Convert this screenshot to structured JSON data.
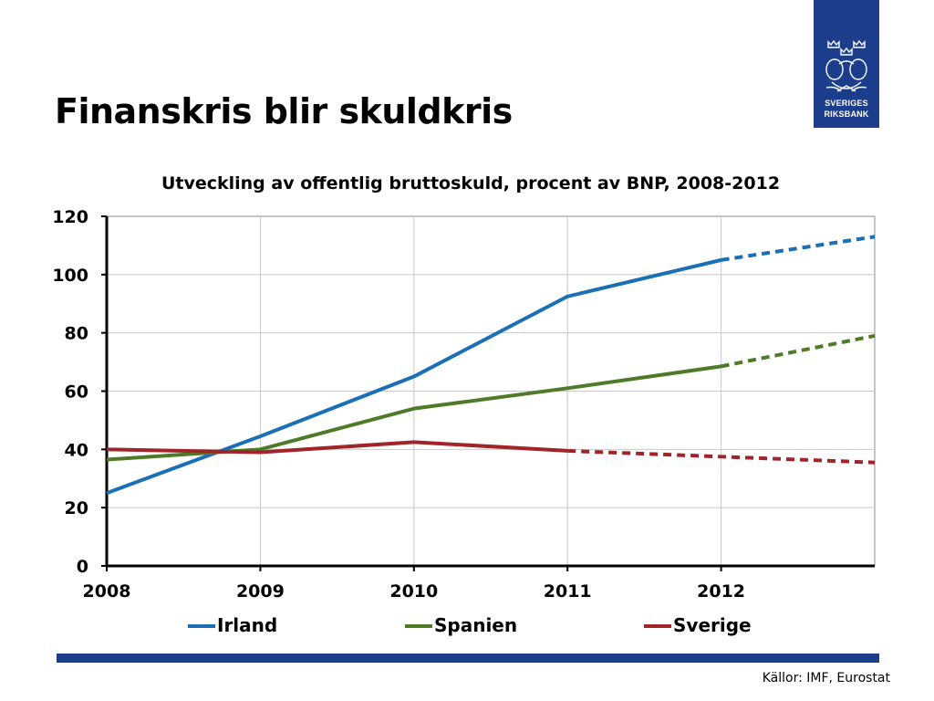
{
  "slide": {
    "title": "Finanskris blir skuldkris",
    "source": "Källor: IMF, Eurostat"
  },
  "logo": {
    "line1": "SVERIGES",
    "line2": "RIKSBANK",
    "icon": "riksbank-crest-icon",
    "color": "#1c3d8c"
  },
  "colors": {
    "footer_bar": "#1c3d8c"
  },
  "chart_data": {
    "type": "line",
    "title": "Utveckling av offentlig bruttoskuld, procent av BNP, 2008-2012",
    "xlabel": "",
    "ylabel": "",
    "x_ticks": [
      "2008",
      "2009",
      "2010",
      "2011",
      "2012"
    ],
    "x_range": [
      2008,
      2013
    ],
    "ylim": [
      0,
      120
    ],
    "y_ticks": [
      "0",
      "20",
      "40",
      "60",
      "80",
      "100",
      "120"
    ],
    "grid": true,
    "legend_position": "bottom",
    "series": [
      {
        "name": "Irland",
        "color": "#1a6fb5",
        "x": [
          2008,
          2009,
          2010,
          2011,
          2012,
          2013
        ],
        "values": [
          25,
          44.5,
          65,
          92.5,
          105,
          113
        ],
        "dashed_from_index": 4
      },
      {
        "name": "Spanien",
        "color": "#4f7a28",
        "x": [
          2008,
          2009,
          2010,
          2011,
          2012,
          2013
        ],
        "values": [
          36.5,
          40,
          54,
          61,
          68.5,
          79
        ],
        "dashed_from_index": 4
      },
      {
        "name": "Sverige",
        "color": "#a02428",
        "x": [
          2008,
          2009,
          2010,
          2011,
          2012,
          2013
        ],
        "values": [
          40,
          39,
          42.5,
          39.5,
          37.5,
          35.5
        ],
        "dashed_from_index": 3
      }
    ]
  }
}
